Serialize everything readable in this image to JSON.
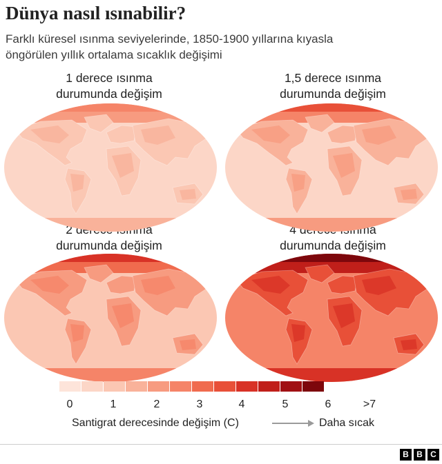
{
  "header": {
    "title": "Dünya nasıl ısınabilir?",
    "subtitle_line1": "Farklı küresel ısınma seviyelerinde, 1850-1900 yıllarına kıyasla",
    "subtitle_line2": "öngörülen yıllık ortalama sıcaklık değişimi"
  },
  "panels": [
    {
      "line1": "1 derece ısınma",
      "line2": "durumunda değişim",
      "warming_level": 1
    },
    {
      "line1": "1,5 derece ısınma",
      "line2": "durumunda değişim",
      "warming_level": 1.5
    },
    {
      "line1": "2 derece ısınma",
      "line2": "durumunda değişim",
      "warming_level": 2
    },
    {
      "line1": "4 derece ısınma",
      "line2": "durumunda değişim",
      "warming_level": 4
    }
  ],
  "legend": {
    "colors": [
      "#fde4da",
      "#fcd6c7",
      "#fbc7b3",
      "#f9b29a",
      "#f79b80",
      "#f58468",
      "#f06b4e",
      "#e85038",
      "#d83226",
      "#c01f1a",
      "#a01013",
      "#7d070c"
    ],
    "ticks": [
      "0",
      "1",
      "2",
      "3",
      "4",
      "5",
      "6",
      ">7"
    ],
    "axis_label": "Santigrat derecesinde değişim (C)",
    "warmer_label": "Daha sıcak"
  },
  "footer": {
    "logo_letters": [
      "B",
      "B",
      "C"
    ]
  }
}
